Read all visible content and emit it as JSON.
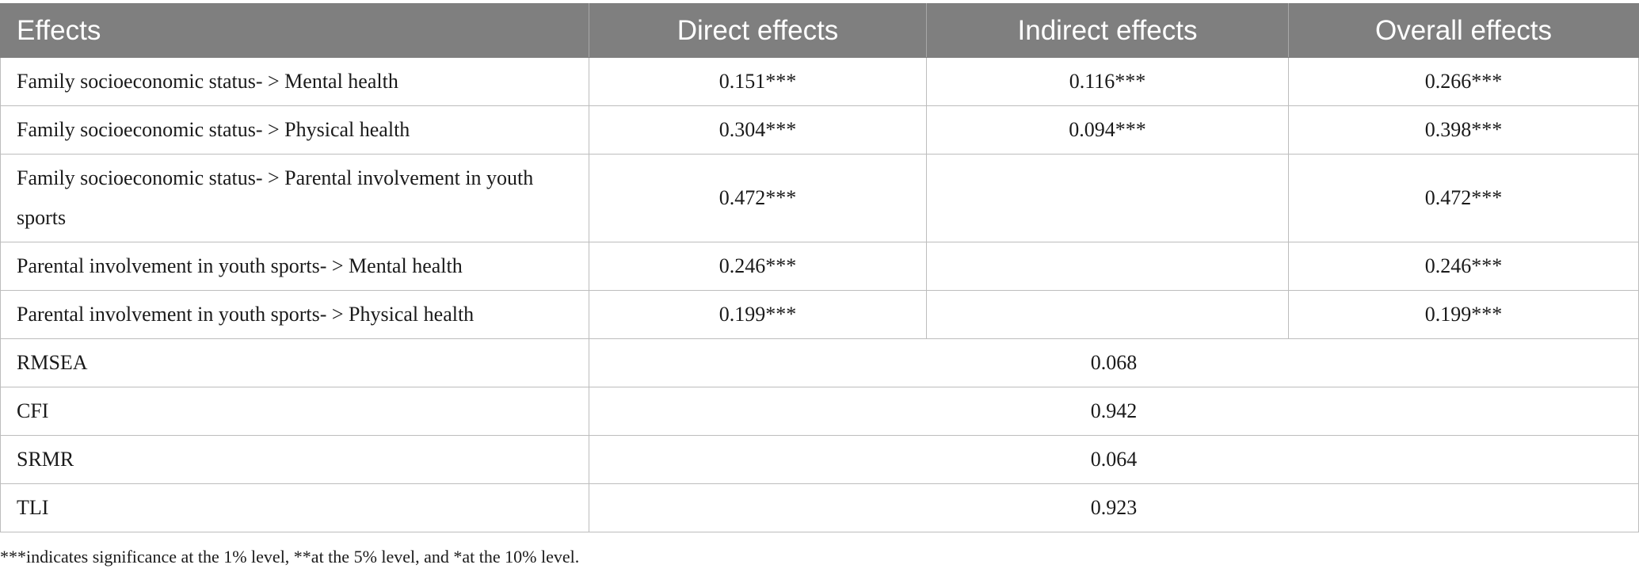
{
  "table": {
    "headers": [
      "Effects",
      "Direct effects",
      "Indirect effects",
      "Overall effects"
    ],
    "effect_rows": [
      {
        "label": "Family socioeconomic status- > Mental health",
        "direct": "0.151***",
        "indirect": "0.116***",
        "overall": "0.266***"
      },
      {
        "label": "Family socioeconomic status- > Physical health",
        "direct": "0.304***",
        "indirect": "0.094***",
        "overall": "0.398***"
      },
      {
        "label": "Family socioeconomic status- > Parental involvement in youth sports",
        "direct": "0.472***",
        "indirect": "",
        "overall": "0.472***"
      },
      {
        "label": "Parental involvement in youth sports- > Mental health",
        "direct": "0.246***",
        "indirect": "",
        "overall": "0.246***"
      },
      {
        "label": "Parental involvement in youth sports- > Physical health",
        "direct": "0.199***",
        "indirect": "",
        "overall": "0.199***"
      }
    ],
    "fit_rows": [
      {
        "label": "RMSEA",
        "value": "0.068"
      },
      {
        "label": "CFI",
        "value": "0.942"
      },
      {
        "label": "SRMR",
        "value": "0.064"
      },
      {
        "label": "TLI",
        "value": "0.923"
      }
    ]
  },
  "footnote": "***indicates significance at the 1% level, **at the 5% level, and *at the 10% level."
}
